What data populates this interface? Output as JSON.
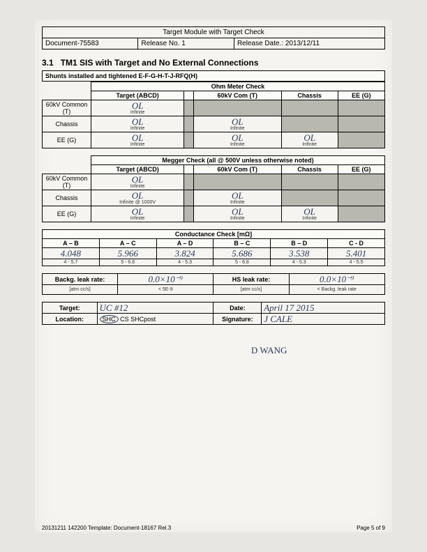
{
  "header": {
    "title": "Target Module with Target Check",
    "doc": "Document-75583",
    "release_no": "Release No. 1",
    "release_date": "Release Date.: 2013/12/11"
  },
  "section": {
    "num": "3.1",
    "title": "TM1 SIS with Target and No External Connections"
  },
  "shunts": "Shunts installed and tightened E-F-G-H-T-J-RFQ(H)",
  "ohm": {
    "title": "Ohm Meter Check",
    "cols": [
      "Target (ABCD)",
      "",
      "60kV Com (T)",
      "Chassis",
      "EE (G)"
    ],
    "rows": [
      {
        "label": "60kV Common (T)",
        "cells": [
          {
            "v": "OL",
            "s": "Infinite"
          },
          {
            "grey": true
          },
          {
            "grey": true
          },
          {
            "grey": true
          },
          {
            "grey": true
          }
        ]
      },
      {
        "label": "Chassis",
        "cells": [
          {
            "v": "OL",
            "s": "Infinite"
          },
          {
            "grey": true
          },
          {
            "v": "OL",
            "s": "Infinite"
          },
          {
            "grey": true
          },
          {
            "grey": true
          }
        ]
      },
      {
        "label": "EE (G)",
        "cells": [
          {
            "v": "OL",
            "s": "Infinite"
          },
          {
            "grey": true
          },
          {
            "v": "OL",
            "s": "Infinite"
          },
          {
            "v": "OL",
            "s": "Infinite"
          },
          {
            "grey": true
          }
        ]
      }
    ]
  },
  "megger": {
    "title": "Megger Check (all @ 500V unless otherwise noted)",
    "cols": [
      "Target (ABCD)",
      "",
      "60kV Com (T)",
      "Chassis",
      "EE (G)"
    ],
    "rows": [
      {
        "label": "60kV Common (T)",
        "cells": [
          {
            "v": "OL",
            "s": "Infinite"
          },
          {
            "grey": true
          },
          {
            "grey": true
          },
          {
            "grey": true
          },
          {
            "grey": true
          }
        ]
      },
      {
        "label": "Chassis",
        "cells": [
          {
            "v": "OL",
            "s": "Infinite @ 1000V"
          },
          {
            "grey": true
          },
          {
            "v": "OL",
            "s": "Infinite"
          },
          {
            "grey": true
          },
          {
            "grey": true
          }
        ]
      },
      {
        "label": "EE (G)",
        "cells": [
          {
            "v": "OL",
            "s": "Infinite"
          },
          {
            "grey": true
          },
          {
            "v": "OL",
            "s": "Infinite"
          },
          {
            "v": "OL",
            "s": "Infinite"
          },
          {
            "grey": true
          }
        ]
      }
    ]
  },
  "conductance": {
    "title": "Conductance Check [mΩ]",
    "cols": [
      "A – B",
      "A – C",
      "A – D",
      "B – C",
      "B – D",
      "C - D"
    ],
    "vals": [
      "4.048",
      "5.966",
      "3.824",
      "5.686",
      "3.538",
      "5.401"
    ],
    "ranges": [
      "4 - 5.7",
      "5 - 6.8",
      "4 - 5.3",
      "5 - 6.8",
      "4 - 5.3",
      "4 - 5.5"
    ]
  },
  "leak": {
    "l1": "Backg. leak rate:",
    "v1": "0.0×10⁻⁹",
    "r1": "HS leak rate:",
    "rv1": "0.0×10⁻⁹",
    "l2": "[atm·cc/s]",
    "v2": "< 5E-9",
    "r2": "[atm·cc/s]",
    "rv2": "< Backg. leak rate"
  },
  "info": {
    "target_lbl": "Target:",
    "target_val": "UC #12",
    "date_lbl": "Date:",
    "date_val": "April 17 2015",
    "loc_lbl": "Location:",
    "loc_opts_circled": "SHC",
    "loc_opts": "CS   SHCpost",
    "sig_lbl": "Signature:",
    "sig_val": "J CALE",
    "sig2": "D WANG"
  },
  "footer": {
    "left": "20131211 142200 Template: Document-18167 Rel.3",
    "right": "Page 5 of 9"
  }
}
